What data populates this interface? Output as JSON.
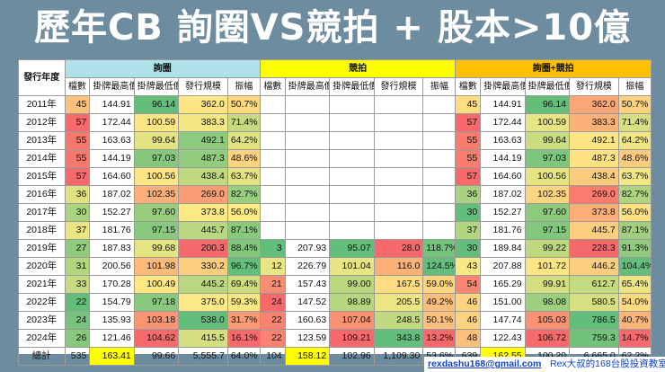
{
  "title": "歷年CB 詢圈VS競拍 + 股本>10億",
  "header": {
    "corner": "發行年度",
    "groups": [
      "詢圈",
      "競拍",
      "詢圈+競拍"
    ],
    "columns": [
      "檔數",
      "掛牌最高價",
      "掛牌最低價",
      "發行規模",
      "振幅"
    ]
  },
  "rows": [
    {
      "year": "2011年",
      "g1": [
        "45",
        "144.91",
        "96.14",
        "362.0",
        "50.7%"
      ],
      "g2": [
        "",
        "",
        "",
        "",
        ""
      ],
      "g3": [
        "45",
        "144.91",
        "96.14",
        "362.0",
        "50.7%"
      ]
    },
    {
      "year": "2012年",
      "g1": [
        "57",
        "172.44",
        "100.59",
        "383.3",
        "71.4%"
      ],
      "g2": [
        "",
        "",
        "",
        "",
        ""
      ],
      "g3": [
        "57",
        "172.44",
        "100.59",
        "383.3",
        "71.4%"
      ]
    },
    {
      "year": "2013年",
      "g1": [
        "55",
        "163.63",
        "99.64",
        "492.1",
        "64.2%"
      ],
      "g2": [
        "",
        "",
        "",
        "",
        ""
      ],
      "g3": [
        "55",
        "163.63",
        "99.64",
        "492.1",
        "64.2%"
      ]
    },
    {
      "year": "2014年",
      "g1": [
        "55",
        "144.19",
        "97.03",
        "487.3",
        "48.6%"
      ],
      "g2": [
        "",
        "",
        "",
        "",
        ""
      ],
      "g3": [
        "55",
        "144.19",
        "97.03",
        "487.3",
        "48.6%"
      ]
    },
    {
      "year": "2015年",
      "g1": [
        "57",
        "164.60",
        "100.56",
        "438.4",
        "63.7%"
      ],
      "g2": [
        "",
        "",
        "",
        "",
        ""
      ],
      "g3": [
        "57",
        "164.60",
        "100.56",
        "438.4",
        "63.7%"
      ]
    },
    {
      "year": "2016年",
      "g1": [
        "36",
        "187.02",
        "102.35",
        "269.0",
        "82.7%"
      ],
      "g2": [
        "",
        "",
        "",
        "",
        ""
      ],
      "g3": [
        "36",
        "187.02",
        "102.35",
        "269.0",
        "82.7%"
      ]
    },
    {
      "year": "2017年",
      "g1": [
        "30",
        "152.27",
        "97.60",
        "373.8",
        "56.0%"
      ],
      "g2": [
        "",
        "",
        "",
        "",
        ""
      ],
      "g3": [
        "30",
        "152.27",
        "97.60",
        "373.8",
        "56.0%"
      ]
    },
    {
      "year": "2018年",
      "g1": [
        "37",
        "181.76",
        "97.15",
        "445.7",
        "87.1%"
      ],
      "g2": [
        "",
        "",
        "",
        "",
        ""
      ],
      "g3": [
        "37",
        "181.76",
        "97.15",
        "445.7",
        "87.1%"
      ]
    },
    {
      "year": "2019年",
      "g1": [
        "27",
        "187.83",
        "99.68",
        "200.3",
        "88.4%"
      ],
      "g2": [
        "3",
        "207.93",
        "95.07",
        "28.0",
        "118.7%"
      ],
      "g3": [
        "30",
        "189.84",
        "99.22",
        "228.3",
        "91.3%"
      ]
    },
    {
      "year": "2020年",
      "g1": [
        "31",
        "200.56",
        "101.98",
        "330.2",
        "96.7%"
      ],
      "g2": [
        "12",
        "226.79",
        "101.04",
        "116.0",
        "124.5%"
      ],
      "g3": [
        "43",
        "207.88",
        "101.72",
        "446.2",
        "104.4%"
      ]
    },
    {
      "year": "2021年",
      "g1": [
        "33",
        "170.28",
        "100.49",
        "445.2",
        "69.4%"
      ],
      "g2": [
        "21",
        "157.43",
        "99.00",
        "167.5",
        "59.0%"
      ],
      "g3": [
        "54",
        "165.29",
        "99.91",
        "612.7",
        "65.4%"
      ]
    },
    {
      "year": "2022年",
      "g1": [
        "22",
        "154.79",
        "97.18",
        "375.0",
        "59.3%"
      ],
      "g2": [
        "24",
        "147.52",
        "98.89",
        "205.5",
        "49.2%"
      ],
      "g3": [
        "46",
        "151.00",
        "98.08",
        "580.5",
        "54.0%"
      ]
    },
    {
      "year": "2023年",
      "g1": [
        "24",
        "135.93",
        "103.18",
        "538.0",
        "31.7%"
      ],
      "g2": [
        "22",
        "160.63",
        "107.04",
        "248.5",
        "50.1%"
      ],
      "g3": [
        "46",
        "147.74",
        "105.03",
        "786.5",
        "40.7%"
      ]
    },
    {
      "year": "2024年",
      "g1": [
        "26",
        "121.46",
        "104.62",
        "415.5",
        "16.1%"
      ],
      "g2": [
        "22",
        "123.59",
        "109.21",
        "343.8",
        "13.2%"
      ],
      "g3": [
        "48",
        "122.43",
        "106.72",
        "759.3",
        "14.7%"
      ]
    }
  ],
  "total": {
    "label": "總計",
    "g1": [
      "535",
      "163.41",
      "99.66",
      "5,555.7",
      "64.0%"
    ],
    "g2": [
      "104",
      "158.12",
      "102.96",
      "1,109.30",
      "53.6%"
    ],
    "g3": [
      "639",
      "162.55",
      "100.20",
      "6,665.0",
      "62.2%"
    ]
  },
  "footer": {
    "email": "rexdashu168@gmail.com",
    "author": "Rex大叔的168台股投資教室"
  },
  "colors": {
    "background": "#6e8ca0",
    "group1": "#aee1e8",
    "group2": "#ffff00",
    "group3": "#ffc000",
    "highlight": "#ffff00",
    "scale_low": "#f8696b",
    "scale_mid": "#ffeb84",
    "scale_high": "#63be7b"
  }
}
